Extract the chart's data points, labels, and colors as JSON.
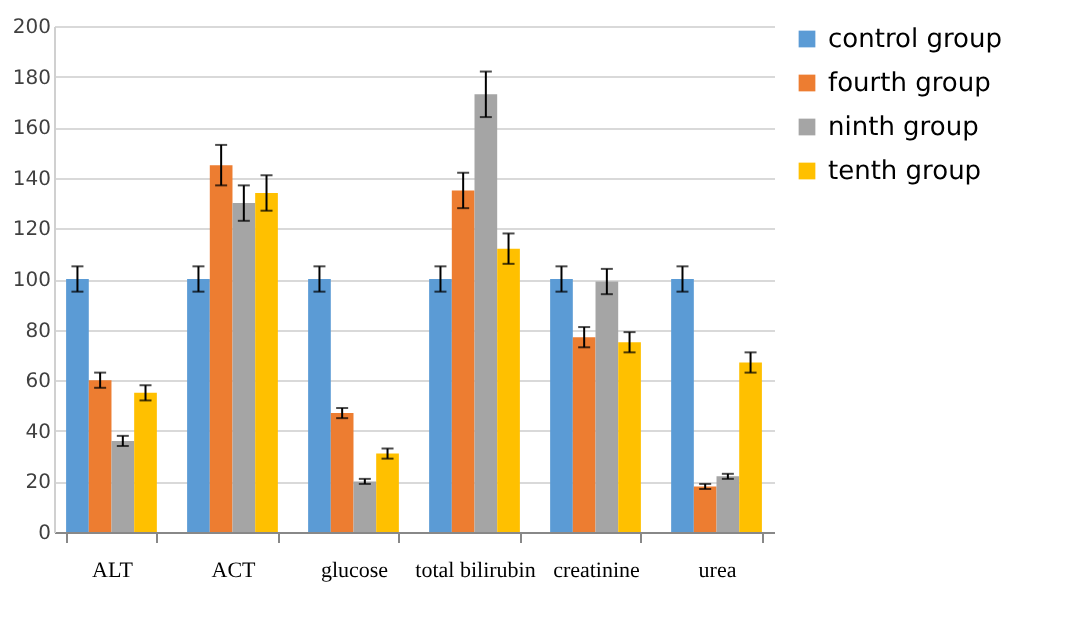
{
  "chart_data": {
    "type": "bar",
    "categories": [
      "ALT",
      "ACT",
      "glucose",
      "total bilirubin",
      "creatinine",
      "urea"
    ],
    "series": [
      {
        "name": "control group",
        "color": "#5b9bd5",
        "values": [
          100,
          100,
          100,
          100,
          100,
          100
        ],
        "errors": [
          5,
          5,
          5,
          5,
          5,
          5
        ]
      },
      {
        "name": "fourth group",
        "color": "#ed7d31",
        "values": [
          60,
          145,
          47,
          135,
          77,
          18
        ],
        "errors": [
          3,
          8,
          2,
          7,
          4,
          1
        ]
      },
      {
        "name": "ninth group",
        "color": "#a5a5a5",
        "values": [
          36,
          130,
          20,
          173,
          99,
          22
        ],
        "errors": [
          2,
          7,
          1,
          9,
          5,
          1
        ]
      },
      {
        "name": "tenth group",
        "color": "#ffc000",
        "values": [
          55,
          134,
          31,
          112,
          75,
          67
        ],
        "errors": [
          3,
          7,
          2,
          6,
          4,
          4
        ]
      }
    ],
    "ylim": [
      0,
      200
    ],
    "yticks": [
      0,
      20,
      40,
      60,
      80,
      100,
      120,
      140,
      160,
      180,
      200
    ],
    "grid": "y",
    "legend": "right"
  }
}
